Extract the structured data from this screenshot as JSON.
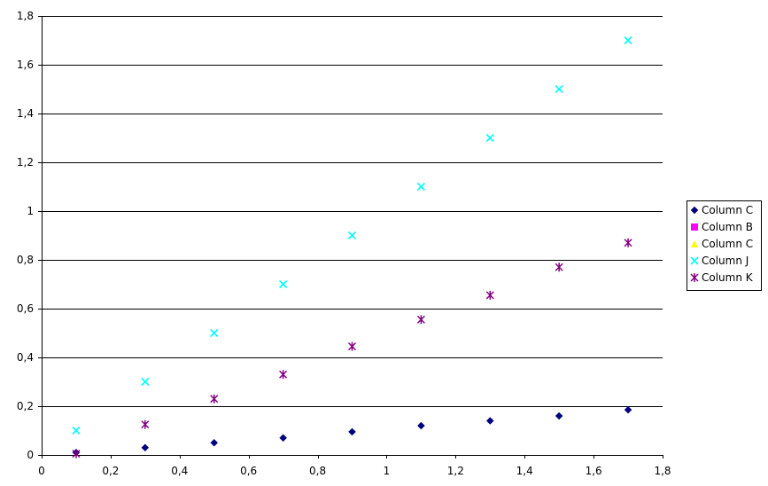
{
  "chart_data": {
    "type": "scatter",
    "title": "",
    "xlabel": "",
    "ylabel": "",
    "xlim": [
      0,
      1.8
    ],
    "ylim": [
      0,
      1.8
    ],
    "x_ticks": [
      0,
      0.2,
      0.4,
      0.6,
      0.8,
      1,
      1.2,
      1.4,
      1.6,
      1.8
    ],
    "x_tick_labels": [
      "0",
      "0,2",
      "0,4",
      "0,6",
      "0,8",
      "1",
      "1,2",
      "1,4",
      "1,6",
      "1,8"
    ],
    "y_ticks": [
      0,
      0.2,
      0.4,
      0.6,
      0.8,
      1,
      1.2,
      1.4,
      1.6,
      1.8
    ],
    "y_tick_labels": [
      "0",
      "0,2",
      "0,4",
      "0,6",
      "0,8",
      "1",
      "1,2",
      "1,4",
      "1,6",
      "1,8"
    ],
    "grid": "horizontal",
    "legend_position": "right",
    "series": [
      {
        "name": "Column C",
        "marker": "diamond",
        "color": "#000080",
        "x": [
          0.1,
          0.3,
          0.5,
          0.7,
          0.9,
          1.1,
          1.3,
          1.5,
          1.7
        ],
        "y": [
          0.01,
          0.03,
          0.05,
          0.07,
          0.095,
          0.12,
          0.14,
          0.16,
          0.185
        ]
      },
      {
        "name": "Column B",
        "marker": "square",
        "color": "#ff00ff",
        "x": [],
        "y": []
      },
      {
        "name": "Column C",
        "marker": "triangle",
        "color": "#ffff00",
        "x": [],
        "y": []
      },
      {
        "name": "Column J",
        "marker": "x",
        "color": "#00ffff",
        "x": [
          0.1,
          0.3,
          0.5,
          0.7,
          0.9,
          1.1,
          1.3,
          1.5,
          1.7
        ],
        "y": [
          0.1,
          0.3,
          0.5,
          0.7,
          0.9,
          1.1,
          1.3,
          1.5,
          1.7
        ]
      },
      {
        "name": "Column K",
        "marker": "asterisk",
        "color": "#800080",
        "x": [
          0.1,
          0.3,
          0.5,
          0.7,
          0.9,
          1.1,
          1.3,
          1.5,
          1.7
        ],
        "y": [
          0.005,
          0.125,
          0.23,
          0.33,
          0.445,
          0.555,
          0.655,
          0.77,
          0.87
        ]
      }
    ]
  }
}
